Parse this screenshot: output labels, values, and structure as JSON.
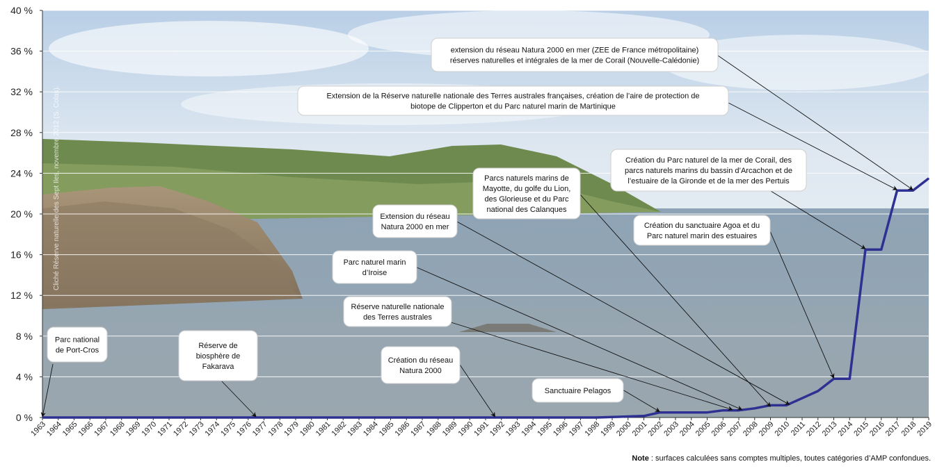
{
  "chart_data": {
    "type": "line",
    "ylim": [
      0,
      40
    ],
    "yticks": [
      "0 %",
      "4 %",
      "8 %",
      "12 %",
      "16 %",
      "20 %",
      "24 %",
      "28 %",
      "32 %",
      "36 %",
      "40 %"
    ],
    "ytick_values": [
      0,
      4,
      8,
      12,
      16,
      20,
      24,
      28,
      32,
      36,
      40
    ],
    "grid": true,
    "line_color": "#2E3192",
    "x": [
      1963,
      1964,
      1965,
      1966,
      1967,
      1968,
      1969,
      1970,
      1971,
      1972,
      1973,
      1974,
      1975,
      1976,
      1977,
      1978,
      1979,
      1980,
      1981,
      1982,
      1983,
      1984,
      1985,
      1986,
      1987,
      1988,
      1989,
      1990,
      1991,
      1992,
      1993,
      1994,
      1995,
      1996,
      1997,
      1998,
      1999,
      2000,
      2001,
      2002,
      2003,
      2004,
      2005,
      2006,
      2007,
      2008,
      2009,
      2010,
      2011,
      2012,
      2013,
      2014,
      2015,
      2016,
      2017,
      2018,
      2019
    ],
    "series": [
      {
        "values": [
          0,
          0,
          0,
          0,
          0,
          0,
          0,
          0,
          0,
          0,
          0,
          0,
          0,
          0,
          0,
          0,
          0,
          0,
          0,
          0,
          0,
          0,
          0,
          0,
          0,
          0,
          0,
          0,
          0,
          0,
          0,
          0,
          0,
          0,
          0,
          0,
          0.05,
          0.1,
          0.15,
          0.5,
          0.5,
          0.5,
          0.5,
          0.7,
          0.7,
          0.9,
          1.2,
          1.2,
          1.9,
          2.6,
          3.8,
          3.8,
          16.5,
          16.5,
          22.3,
          22.3,
          23.5
        ]
      }
    ],
    "annotations": [
      {
        "id": "a1",
        "lines": [
          "Parc national",
          "de Port-Cros"
        ],
        "x": 1963,
        "y": 0
      },
      {
        "id": "a2",
        "lines": [
          "Réserve de",
          "biosphère de",
          "Fakarava"
        ],
        "x": 1976.5,
        "y": 0
      },
      {
        "id": "a3",
        "lines": [
          "Création du réseau",
          "Natura 2000"
        ],
        "x": 1991.6,
        "y": 0
      },
      {
        "id": "a4",
        "lines": [
          "Sanctuaire Pelagos"
        ],
        "x": 2002,
        "y": 0.5
      },
      {
        "id": "a5",
        "lines": [
          "Réserve naturelle nationale",
          "des Terres australes"
        ],
        "x": 2006.6,
        "y": 0.7
      },
      {
        "id": "a6",
        "lines": [
          "Parc naturel marin",
          "d’Iroise"
        ],
        "x": 2007.2,
        "y": 0.7
      },
      {
        "id": "a7",
        "lines": [
          "Extension du réseau",
          "Natura 2000 en mer"
        ],
        "x": 2010.2,
        "y": 1.2
      },
      {
        "id": "a8",
        "lines": [
          "Parcs naturels marins de",
          "Mayotte, du golfe du Lion,",
          "des Glorieuse et du Parc",
          "national des Calanques"
        ],
        "x": 2009,
        "y": 1.0
      },
      {
        "id": "a9",
        "lines": [
          "Création du sanctuaire Agoa et du",
          "Parc naturel marin des estuaires"
        ],
        "x": 2013,
        "y": 3.8
      },
      {
        "id": "a10",
        "lines": [
          "Création du Parc naturel de la mer de Corail, des",
          "parcs naturels marins du bassin d’Arcachon et de",
          "l’estuaire de la Gironde et de la mer des Pertuis"
        ],
        "x": 2015,
        "y": 16.5
      },
      {
        "id": "a11",
        "lines": [
          "Extension de  la Réserve naturelle nationale des Terres australes françaises, création de l’aire de protection de",
          "biotope de Clipperton et du  Parc naturel marin de Martinique"
        ],
        "x": 2017,
        "y": 22.3
      },
      {
        "id": "a12",
        "lines": [
          "extension du réseau Natura 2000 en mer  (ZEE de France métropolitaine)",
          "réserves naturelles et intégrales de la mer de Corail (Nouvelle-Calédonie)"
        ],
        "x": 2018,
        "y": 22.3
      }
    ],
    "note_label": "Note",
    "note_text": " : surfaces calculées sans comptes multiples, toutes catégories d’AMP confondues.",
    "photo_credit": "Cliché Réserve  naturelle des Sept Iles, novembre 2012 (S. Colas)."
  }
}
